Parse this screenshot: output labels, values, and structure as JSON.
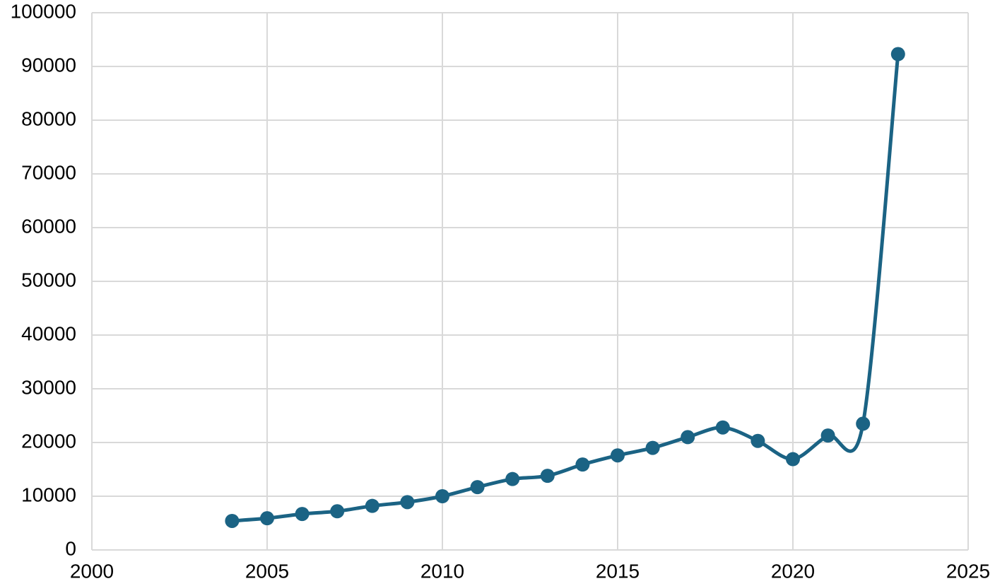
{
  "chart_data": {
    "type": "line",
    "title": "",
    "xlabel": "",
    "ylabel": "",
    "xlim": [
      2000,
      2025
    ],
    "ylim": [
      0,
      100000
    ],
    "x_ticks": [
      2000,
      2005,
      2010,
      2015,
      2020,
      2025
    ],
    "y_ticks": [
      0,
      10000,
      20000,
      30000,
      40000,
      50000,
      60000,
      70000,
      80000,
      90000,
      100000
    ],
    "grid": true,
    "legend": "none",
    "colors": {
      "series": "#1b6384",
      "grid": "#d9d9d9",
      "text": "#000000"
    },
    "series": [
      {
        "x": [
          2004,
          2005,
          2006,
          2007,
          2008,
          2009,
          2010,
          2011,
          2012,
          2013,
          2014,
          2015,
          2016,
          2017,
          2018,
          2019,
          2020,
          2021,
          2022,
          2023
        ],
        "values": [
          5400,
          5900,
          6700,
          7200,
          8200,
          8900,
          10000,
          11700,
          13200,
          13800,
          15900,
          17600,
          19000,
          21000,
          22800,
          20300,
          16900,
          21300,
          23500,
          92300
        ]
      }
    ]
  }
}
